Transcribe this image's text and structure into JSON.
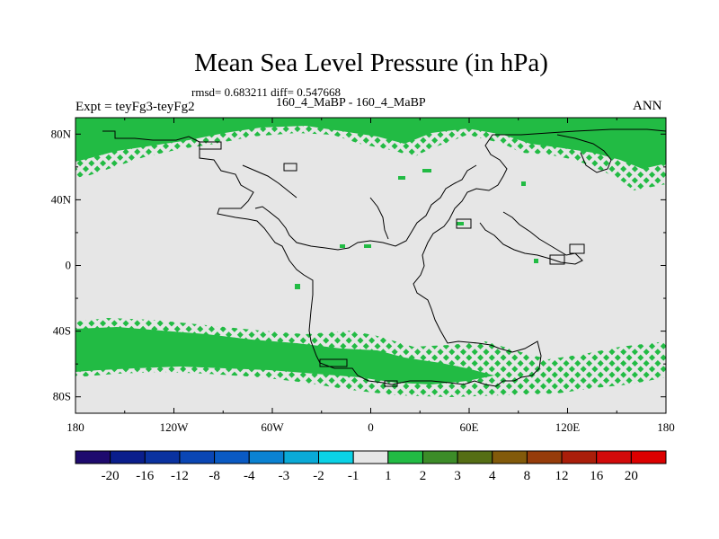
{
  "header": {
    "title": "Mean Sea Level Pressure (in hPa)",
    "stats": "rmsd= 0.683211 diff= 0.547668",
    "subtitle": "160_4_MaBP - 160_4_MaBP",
    "left_label": "Expt = teyFg3-teyFg2",
    "right_label": "ANN"
  },
  "map": {
    "lat_ticks": [
      "80N",
      "40N",
      "0",
      "40S",
      "80S"
    ],
    "lat_values": [
      80,
      40,
      0,
      -40,
      -80
    ],
    "lon_ticks": [
      "180",
      "120W",
      "60W",
      "0",
      "60E",
      "120E",
      "180"
    ],
    "lon_values": [
      -180,
      -120,
      -60,
      0,
      60,
      120,
      180
    ],
    "background_color": "#e6e6e6",
    "positive_color": "#22bb44"
  },
  "colorbar": {
    "labels": [
      "-20",
      "-16",
      "-12",
      "-8",
      "-4",
      "-3",
      "-2",
      "-1",
      "1",
      "2",
      "3",
      "4",
      "8",
      "12",
      "16",
      "20"
    ],
    "colors": [
      "#1e0a6e",
      "#0a1e8c",
      "#0a32a0",
      "#0a46b4",
      "#0a5ac3",
      "#0a82d2",
      "#0aaad7",
      "#0ad2e6",
      "#e6e6e6",
      "#22bb44",
      "#3c8c28",
      "#556e14",
      "#825a0a",
      "#963c0a",
      "#aa1e0a",
      "#d20a0a",
      "#dc0000"
    ]
  }
}
